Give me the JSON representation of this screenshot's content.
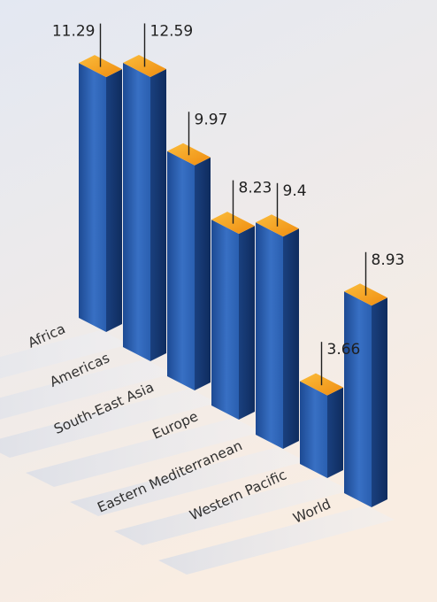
{
  "chart_data": {
    "type": "bar",
    "title": "",
    "xlabel": "",
    "ylabel": "",
    "categories": [
      "Africa",
      "Americas",
      "South-East Asia",
      "Europe",
      "Eastern Mediterranean",
      "Western Pacific",
      "World"
    ],
    "values": [
      11.29,
      12.59,
      9.97,
      8.23,
      9.4,
      3.66,
      8.93
    ],
    "value_labels": [
      "11.29",
      "12.59",
      "9.97",
      "8.23",
      "9.4",
      "3.66",
      "8.93"
    ],
    "style": "3d-isometric",
    "colors": {
      "bar_front": "#2a5fb0",
      "bar_side": "#173a78",
      "bar_top": "#f7a21c",
      "background_top": "#e4e8f1",
      "background_bottom": "#f8ede3",
      "label_band": "#dfe3ec"
    },
    "grid": false,
    "legend": "none"
  }
}
